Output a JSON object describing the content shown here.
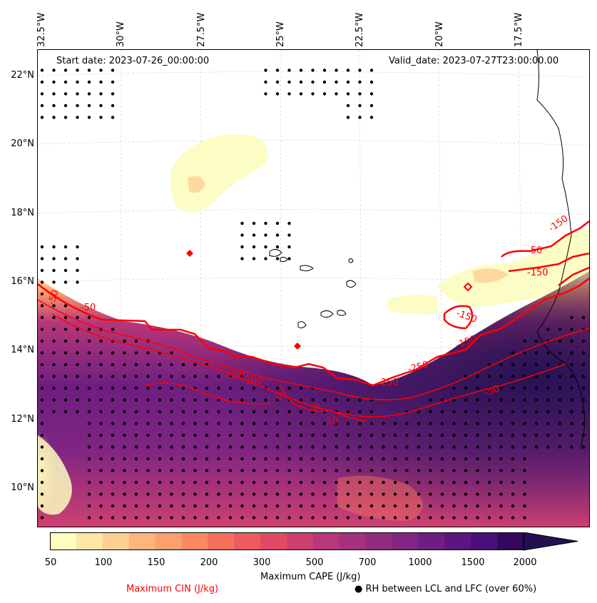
{
  "map": {
    "start_date": "Start date: 2023-07-26_00:00:00",
    "valid_date": "Valid_date: 2023-07-27T23:00:00.00",
    "lon_labels": [
      "32.5°W",
      "30°W",
      "27.5°W",
      "25°W",
      "22.5°W",
      "20°W",
      "17.5°W"
    ],
    "lat_labels": [
      "22°N",
      "20°N",
      "18°N",
      "16°N",
      "14°N",
      "12°N",
      "10°N"
    ],
    "cin_contour_labels": [
      "-50",
      "-100",
      "-150",
      "-250",
      "-50",
      "-150",
      "-150",
      "-150",
      "-50",
      "-250",
      "-50",
      "0",
      "0",
      "-100",
      "-50"
    ],
    "colors": {
      "cin_contour": "#ff0000",
      "coastline": "#000000",
      "rh_dots": "#000000"
    }
  },
  "colorbar": {
    "title": "Maximum CAPE (J/kg)",
    "ticks": [
      "50",
      "100",
      "150",
      "200",
      "300",
      "500",
      "700",
      "1000",
      "1500",
      "2000"
    ],
    "colors": [
      "#fcfdbf",
      "#fee7a4",
      "#fecf92",
      "#feb47b",
      "#fe9f6d",
      "#fc8961",
      "#f7705c",
      "#ed5a5f",
      "#e04a65",
      "#cd4071",
      "#b73779",
      "#a5317e",
      "#932b80",
      "#802582",
      "#6e1e81",
      "#5c167f",
      "#4a0f7a",
      "#33095e",
      "#221150",
      "#000004"
    ]
  },
  "legend": {
    "cin_label": "Maximum CIN (J/kg)",
    "rh_label": "RH between LCL and LFC (over 60%)",
    "rh_marker": "●",
    "cin_color": "#ff0000"
  }
}
